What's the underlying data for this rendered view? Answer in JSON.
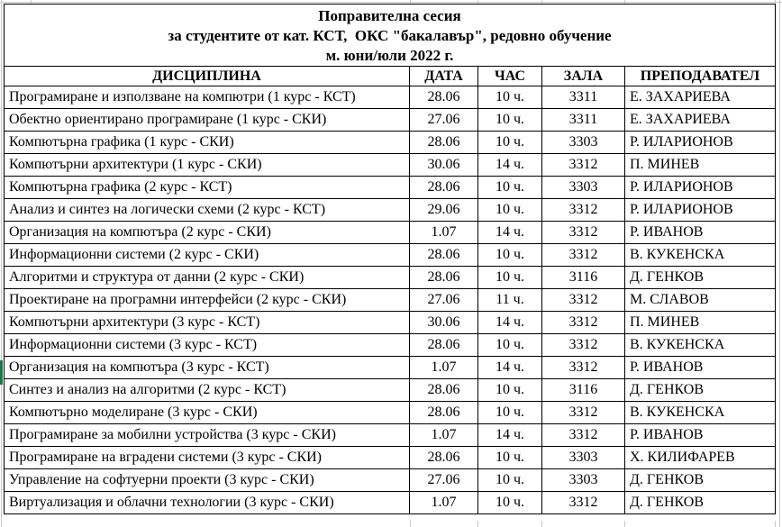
{
  "title": {
    "line1": "Поправителна сесия",
    "line2": "за студентите от кат. КСТ,  ОКС \"бакалавър\", редовно обучение",
    "line3": "м. юни/юли 2022 г."
  },
  "table": {
    "columns": [
      "ДИСЦИПЛИНА",
      "ДАТА",
      "ЧАС",
      "ЗАЛА",
      "ПРЕПОДАВАТЕЛ"
    ],
    "rows": [
      {
        "discipline": "Програмиране и използване на компютри (1 курс - КСТ)",
        "date": "28.06",
        "time": "10 ч.",
        "room": "3311",
        "teacher": "Е. ЗАХАРИЕВА"
      },
      {
        "discipline": "Обектно ориентирано програмиране (1 курс - СКИ)",
        "date": "27.06",
        "time": "10 ч.",
        "room": "3311",
        "teacher": "Е. ЗАХАРИЕВА"
      },
      {
        "discipline": "Компютърна графика (1 курс - СКИ)",
        "date": "28.06",
        "time": "10 ч.",
        "room": "3303",
        "teacher": "Р. ИЛАРИОНОВ"
      },
      {
        "discipline": "Компютърни архитектури (1 курс - СКИ)",
        "date": "30.06",
        "time": "14 ч.",
        "room": "3312",
        "teacher": "П. МИНЕВ"
      },
      {
        "discipline": "Компютърна графика (2 курс - КСТ)",
        "date": "28.06",
        "time": "10 ч.",
        "room": "3303",
        "teacher": "Р. ИЛАРИОНОВ"
      },
      {
        "discipline": "Анализ и синтез на логически схеми (2 курс - КСТ)",
        "date": "29.06",
        "time": "10 ч.",
        "room": "3312",
        "teacher": "Р. ИЛАРИОНОВ"
      },
      {
        "discipline": "Организация на компютъра (2 курс - СКИ)",
        "date": "1.07",
        "time": "14 ч.",
        "room": "3312",
        "teacher": "Р. ИВАНОВ"
      },
      {
        "discipline": "Информационни системи (2 курс - СКИ)",
        "date": "28.06",
        "time": "10 ч.",
        "room": "3312",
        "teacher": "В. КУКЕНСКА"
      },
      {
        "discipline": "Алгоритми и структура от данни (2 курс - СКИ)",
        "date": "28.06",
        "time": "10 ч.",
        "room": "3116",
        "teacher": "Д. ГЕНКОВ"
      },
      {
        "discipline": "Проектиране на програмни интерфейси (2 курс - СКИ)",
        "date": "27.06",
        "time": "11 ч.",
        "room": "3312",
        "teacher": "М. СЛАВОВ"
      },
      {
        "discipline": "Компютърни архитектури (3 курс - КСТ)",
        "date": "30.06",
        "time": "14 ч.",
        "room": "3312",
        "teacher": "П. МИНЕВ"
      },
      {
        "discipline": "Информационни системи (3 курс - КСТ)",
        "date": "28.06",
        "time": "10 ч.",
        "room": "3312",
        "teacher": "В. КУКЕНСКА"
      },
      {
        "discipline": "Организация на компютъра (3 курс - КСТ)",
        "date": "1.07",
        "time": "14 ч.",
        "room": "3312",
        "teacher": "Р. ИВАНОВ"
      },
      {
        "discipline": "Синтез и анализ на алгоритми (2 курс - КСТ)",
        "date": "28.06",
        "time": "10 ч.",
        "room": "3116",
        "teacher": "Д. ГЕНКОВ"
      },
      {
        "discipline": "Компютърно моделиране (3 курс - СКИ)",
        "date": "28.06",
        "time": "10 ч.",
        "room": "3312",
        "teacher": "В. КУКЕНСКА"
      },
      {
        "discipline": "Програмиране за мобилни устройства (3 курс - СКИ)",
        "date": "1.07",
        "time": "14 ч.",
        "room": "3312",
        "teacher": "Р. ИВАНОВ"
      },
      {
        "discipline": "Програмиране на вградени системи (3 курс - СКИ)",
        "date": "28.06",
        "time": "10 ч.",
        "room": "3303",
        "teacher": "Х. КИЛИФАРЕВ"
      },
      {
        "discipline": "Управление на софтуерни проекти (3 курс - СКИ)",
        "date": "27.06",
        "time": "10 ч.",
        "room": "3303",
        "teacher": "Д. ГЕНКОВ"
      },
      {
        "discipline": "Виртуализация и облачни технологии (3 курс - СКИ)",
        "date": "1.07",
        "time": "10 ч.",
        "room": "3312",
        "teacher": "Д. ГЕНКОВ"
      }
    ]
  },
  "selection": {
    "indicator_color": "#217346",
    "selected_row": "Организация на компютъра (3 курс - КСТ)"
  }
}
